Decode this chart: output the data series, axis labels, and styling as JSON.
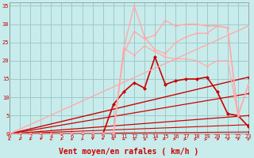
{
  "background_color": "#c8ecec",
  "grid_color": "#a0c8c8",
  "xlabel": "Vent moyen/en rafales ( km/h )",
  "xlabel_color": "#cc0000",
  "xlabel_fontsize": 7,
  "xtick_color": "#cc0000",
  "ytick_color": "#cc0000",
  "xmin": 0,
  "xmax": 23,
  "ymin": 0,
  "ymax": 36,
  "yticks": [
    0,
    5,
    10,
    15,
    20,
    25,
    30,
    35
  ],
  "xticks": [
    0,
    1,
    2,
    3,
    4,
    5,
    6,
    7,
    8,
    9,
    10,
    11,
    12,
    13,
    14,
    15,
    16,
    17,
    18,
    19,
    20,
    21,
    22,
    23
  ],
  "tick_fontsize": 5.0,
  "lines": [
    {
      "x": [
        0,
        23
      ],
      "y": [
        0,
        0.5
      ],
      "color": "#cc0000",
      "lw": 0.8,
      "marker": "D",
      "ms": 1.5
    },
    {
      "x": [
        0,
        23
      ],
      "y": [
        0,
        2.5
      ],
      "color": "#cc0000",
      "lw": 0.8,
      "marker": "D",
      "ms": 1.5
    },
    {
      "x": [
        0,
        23
      ],
      "y": [
        0,
        5.0
      ],
      "color": "#cc0000",
      "lw": 0.9,
      "marker": "D",
      "ms": 1.5
    },
    {
      "x": [
        0,
        23
      ],
      "y": [
        0,
        11.0
      ],
      "color": "#cc0000",
      "lw": 0.9,
      "marker": "D",
      "ms": 1.5
    },
    {
      "x": [
        0,
        23
      ],
      "y": [
        0,
        15.5
      ],
      "color": "#cc0000",
      "lw": 1.0,
      "marker": "D",
      "ms": 2.0
    },
    {
      "x": [
        0,
        1,
        2,
        3,
        4,
        5,
        6,
        7,
        8,
        9,
        10,
        11,
        12,
        13,
        14,
        15,
        16,
        17,
        18,
        19,
        20,
        21,
        22,
        23
      ],
      "y": [
        0,
        0,
        0,
        0,
        0,
        0,
        0,
        0,
        0,
        0,
        8,
        11.5,
        14,
        12.5,
        21,
        13.5,
        14.5,
        15,
        15,
        15.5,
        11.5,
        5.5,
        5,
        2
      ],
      "color": "#cc0000",
      "lw": 1.2,
      "marker": "D",
      "ms": 2.5
    },
    {
      "x": [
        0,
        1,
        2,
        3,
        4,
        5,
        6,
        7,
        8,
        9,
        10,
        11,
        12,
        13,
        14,
        15,
        16,
        17,
        18,
        19,
        20,
        21,
        22,
        23
      ],
      "y": [
        0,
        0,
        0,
        0,
        0,
        0,
        0,
        0,
        0,
        0,
        0,
        22,
        28,
        26,
        27,
        31,
        29.5,
        30,
        30,
        29.5,
        29.5,
        29,
        5,
        13.5
      ],
      "color": "#ffaaaa",
      "lw": 1.0,
      "marker": "D",
      "ms": 2.0
    },
    {
      "x": [
        0,
        23
      ],
      "y": [
        0,
        29.5
      ],
      "color": "#ffaaaa",
      "lw": 1.0,
      "marker": "D",
      "ms": 1.5
    },
    {
      "x": [
        0,
        1,
        2,
        3,
        4,
        5,
        6,
        7,
        8,
        9,
        10,
        11,
        12,
        13,
        14,
        15,
        16,
        17,
        18,
        19,
        20,
        21,
        22,
        23
      ],
      "y": [
        0,
        0,
        0,
        0,
        0,
        0,
        0,
        0,
        0,
        0,
        0,
        23.5,
        21.5,
        24,
        22.5,
        21,
        20.5,
        20.5,
        20,
        18.5,
        20,
        20,
        5,
        13.5
      ],
      "color": "#ffaaaa",
      "lw": 0.9,
      "marker": "D",
      "ms": 1.8
    },
    {
      "x": [
        0,
        1,
        2,
        3,
        4,
        5,
        6,
        7,
        8,
        9,
        10,
        11,
        12,
        13,
        14,
        15,
        16,
        17,
        18,
        19,
        20,
        21,
        22,
        23
      ],
      "y": [
        0,
        0,
        0,
        0,
        0,
        0,
        0,
        0,
        0,
        0,
        0,
        23.5,
        35,
        26.5,
        23,
        22,
        25,
        26.5,
        27.5,
        27.5,
        29.5,
        29,
        5,
        13.5
      ],
      "color": "#ffaaaa",
      "lw": 1.0,
      "marker": "D",
      "ms": 2.0
    }
  ],
  "arrow_angles": [
    225,
    200,
    210,
    190,
    220,
    200,
    215,
    200,
    180,
    170,
    160,
    150,
    140,
    130,
    120,
    110,
    100,
    90,
    80,
    70,
    60,
    50,
    40,
    30
  ]
}
